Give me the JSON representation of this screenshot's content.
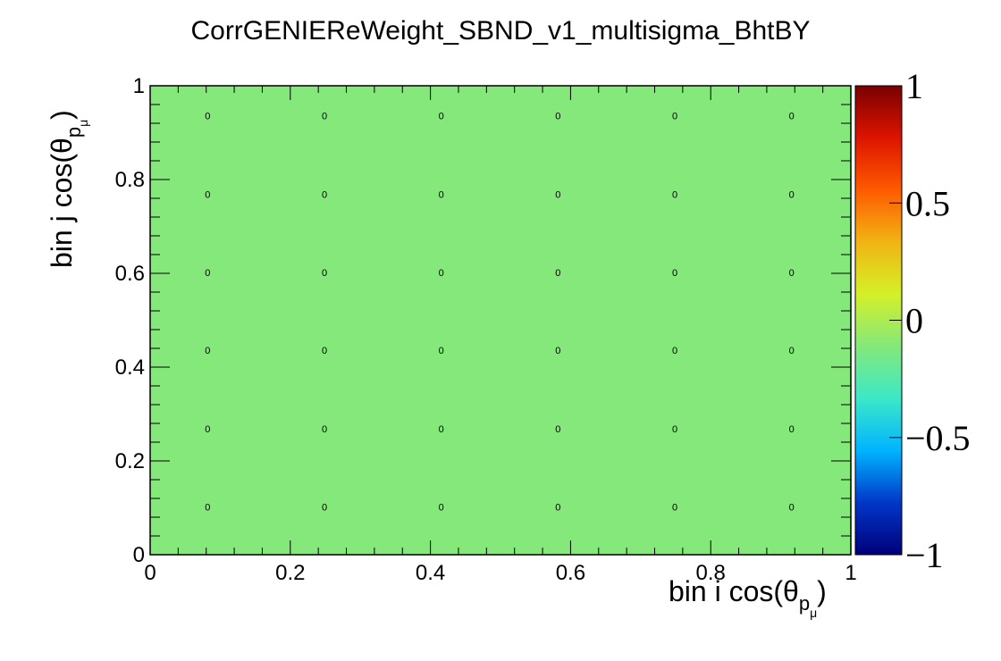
{
  "chart_data": {
    "type": "heatmap",
    "title": "CorrGENIEReWeight_SBND_v1_multisigma_BhtBY",
    "xlabel": {
      "prefix": "bin i cos(θ",
      "sub": "p",
      "subsub": "μ",
      "suffix": ")"
    },
    "ylabel": {
      "prefix": "bin j cos(θ",
      "sub": "p",
      "subsub": "μ",
      "suffix": ")"
    },
    "xlim": [
      0,
      1
    ],
    "ylim": [
      0,
      1
    ],
    "x_ticks": [
      "0",
      "0.2",
      "0.4",
      "0.6",
      "0.8",
      "1"
    ],
    "y_ticks": [
      "0",
      "0.2",
      "0.4",
      "0.6",
      "0.8",
      "1"
    ],
    "x_bin_centers": [
      0.0833,
      0.25,
      0.4167,
      0.5833,
      0.75,
      0.9167
    ],
    "y_bin_centers": [
      0.0833,
      0.25,
      0.4167,
      0.5833,
      0.75,
      0.9167
    ],
    "values": [
      [
        0,
        0,
        0,
        0,
        0,
        0
      ],
      [
        0,
        0,
        0,
        0,
        0,
        0
      ],
      [
        0,
        0,
        0,
        0,
        0,
        0
      ],
      [
        0,
        0,
        0,
        0,
        0,
        0
      ],
      [
        0,
        0,
        0,
        0,
        0,
        0
      ],
      [
        0,
        0,
        0,
        0,
        0,
        0
      ]
    ],
    "zlim": [
      -1,
      1
    ],
    "colorbar_ticks": [
      "1",
      "0.5",
      "0",
      "−0.5",
      "−1"
    ],
    "fill_color": "#84e87a",
    "colorscale": [
      "#00007a",
      "#0037c8",
      "#00b4ff",
      "#3ce8c8",
      "#84e87a",
      "#d4f028",
      "#f0b414",
      "#ff5a00",
      "#dc1400",
      "#7a0000"
    ]
  }
}
